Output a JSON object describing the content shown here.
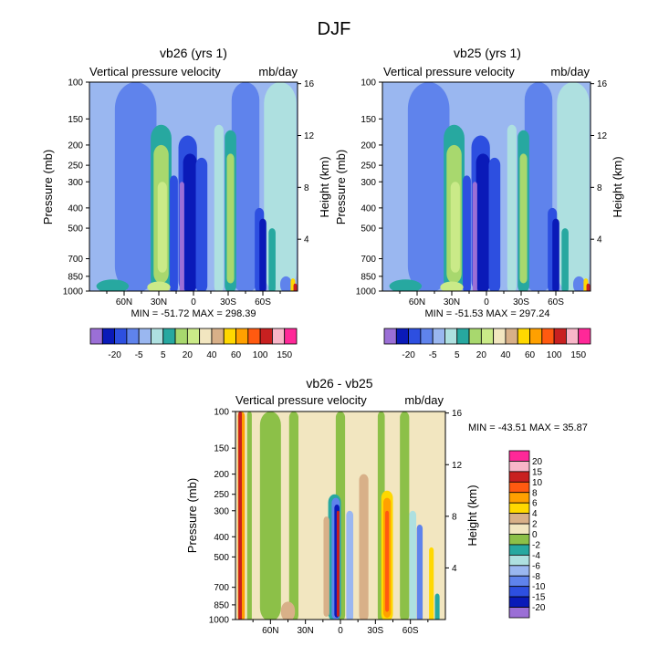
{
  "figure_title": "DJF",
  "palette_main": [
    "#9b6fd6",
    "#0a1ab8",
    "#2d4fe0",
    "#5f83ec",
    "#9ab7f0",
    "#aee0e0",
    "#27a8a0",
    "#a8d86e",
    "#caea88",
    "#f2e6c0",
    "#d8b088",
    "#ffd800",
    "#ffa000",
    "#ff5a10",
    "#c82020",
    "#f8b6c8",
    "#ff2898"
  ],
  "palette_diff": [
    "#9b6fd6",
    "#0a1ab8",
    "#2d4fe0",
    "#5f83ec",
    "#9ab7f0",
    "#aee0e0",
    "#27a8a0",
    "#8cc048",
    "#f2e6c0",
    "#d8b088",
    "#ffd800",
    "#ffa000",
    "#ff5a10",
    "#c82020",
    "#f8b6c8",
    "#ff2898"
  ],
  "chart_data": [
    {
      "id": "panel1",
      "type": "heatmap",
      "title": "vb26 (yrs 1)",
      "left_label": "Vertical pressure velocity",
      "right_label": "mb/day",
      "ylabel": "Pressure (mb)",
      "ylabel_right": "Height (km)",
      "xlim": [
        90,
        -90
      ],
      "ylim": [
        1000,
        100
      ],
      "y_ticks": [
        100,
        150,
        200,
        250,
        300,
        400,
        500,
        700,
        850,
        1000
      ],
      "height_ticks": [
        4,
        8,
        12,
        16
      ],
      "x_ticks": [
        {
          "lat": 60,
          "label": "60N"
        },
        {
          "lat": 30,
          "label": "30N"
        },
        {
          "lat": 0,
          "label": "0"
        },
        {
          "lat": -30,
          "label": "30S"
        },
        {
          "lat": -60,
          "label": "60S"
        }
      ],
      "stats": "MIN = -51.72  MAX = 298.39",
      "min": -51.72,
      "max": 298.39,
      "colorbar_labels": [
        "-20",
        "-5",
        "5",
        "20",
        "40",
        "60",
        "100",
        "150"
      ]
    },
    {
      "id": "panel2",
      "type": "heatmap",
      "title": "vb25 (yrs 1)",
      "left_label": "Vertical pressure velocity",
      "right_label": "mb/day",
      "ylabel": "Pressure (mb)",
      "ylabel_right": "Height (km)",
      "xlim": [
        90,
        -90
      ],
      "ylim": [
        1000,
        100
      ],
      "y_ticks": [
        100,
        150,
        200,
        250,
        300,
        400,
        500,
        700,
        850,
        1000
      ],
      "height_ticks": [
        4,
        8,
        12,
        16
      ],
      "x_ticks": [
        {
          "lat": 60,
          "label": "60N"
        },
        {
          "lat": 30,
          "label": "30N"
        },
        {
          "lat": 0,
          "label": "0"
        },
        {
          "lat": -30,
          "label": "30S"
        },
        {
          "lat": -60,
          "label": "60S"
        }
      ],
      "stats": "MIN = -51.53  MAX = 297.24",
      "min": -51.53,
      "max": 297.24,
      "colorbar_labels": [
        "-20",
        "-5",
        "5",
        "20",
        "40",
        "60",
        "100",
        "150"
      ]
    },
    {
      "id": "panel3",
      "type": "heatmap",
      "title": "vb26 - vb25",
      "left_label": "Vertical pressure velocity",
      "right_label": "mb/day",
      "ylabel": "Pressure (mb)",
      "ylabel_right": "Height (km)",
      "xlim": [
        90,
        -90
      ],
      "ylim": [
        1000,
        100
      ],
      "y_ticks": [
        100,
        150,
        200,
        250,
        300,
        400,
        500,
        700,
        850,
        1000
      ],
      "height_ticks": [
        4,
        8,
        12,
        16
      ],
      "x_ticks": [
        {
          "lat": 60,
          "label": "60N"
        },
        {
          "lat": 30,
          "label": "30N"
        },
        {
          "lat": 0,
          "label": "0"
        },
        {
          "lat": -30,
          "label": "30S"
        },
        {
          "lat": -60,
          "label": "60S"
        }
      ],
      "stats": "MIN = -43.51  MAX = 35.87",
      "min": -43.51,
      "max": 35.87,
      "colorbar_labels": [
        "20",
        "15",
        "10",
        "8",
        "6",
        "4",
        "2",
        "0",
        "-2",
        "-4",
        "-6",
        "-8",
        "-10",
        "-15",
        "-20"
      ]
    }
  ]
}
